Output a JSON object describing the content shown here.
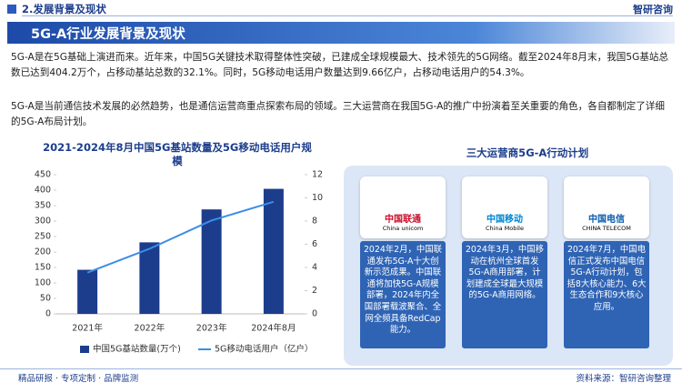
{
  "header": {
    "crumb": "2.发展背景及现状",
    "logo": "智研咨询"
  },
  "section": {
    "title": "5G-A行业发展背景及现状"
  },
  "paragraphs": [
    "5G-A是在5G基础上演进而来。近年来，中国5G关键技术取得整体性突破，已建成全球规模最大、技术领先的5G网络。截至2024年8月末，我国5G基站总数已达到404.2万个，占移动基站总数的32.1%。同时，5G移动电话用户数量达到9.66亿户，占移动电话用户的54.3%。",
    "5G-A是当前通信技术发展的必然趋势，也是通信运营商重点探索布局的领域。三大运营商在我国5G-A的推广中扮演着至关重要的角色，各自都制定了详细的5G-A布局计划。"
  ],
  "chart_data": {
    "type": "bar",
    "title": "2021-2024年8月中国5G基站数量及5G移动电话用户规模",
    "categories": [
      "2021年",
      "2022年",
      "2023年",
      "2024年8月"
    ],
    "series": [
      {
        "name": "中国5G基站数量(万个)",
        "color": "#1c3d8c",
        "values": [
          142.5,
          231.2,
          337.7,
          404.2
        ]
      },
      {
        "name": "5G移动电话用户（亿户）",
        "color": "#3a8ee6",
        "type": "line",
        "axis": "y2",
        "values": [
          3.55,
          5.61,
          8.05,
          9.66
        ]
      }
    ],
    "ylim": [
      0,
      450
    ],
    "yticks": [
      0,
      50,
      100,
      150,
      200,
      250,
      300,
      350,
      400,
      450
    ],
    "y2lim": [
      0,
      12
    ],
    "y2ticks": [
      0,
      2,
      4,
      6,
      8,
      10,
      12
    ],
    "grid": false
  },
  "plans": {
    "title": "三大运营商5G-A行动计划",
    "items": [
      {
        "logo_cn": "中国联通",
        "logo_en": "China unicom",
        "text": "2024年2月，中国联通发布5G-A十大创新示范成果。中国联通将加快5G-A规模部署，2024年内全国部署载波聚合、全网全频具备RedCap能力。"
      },
      {
        "logo_cn": "中国移动",
        "logo_en": "China Mobile",
        "text": "2024年3月，中国移动在杭州全球首发5G-A商用部署，计划建成全球最大规模的5G-A商用网络。"
      },
      {
        "logo_cn": "中国电信",
        "logo_en": "CHINA TELECOM",
        "text": "2024年7月，中国电信正式发布中国电信5G-A行动计划，包括8大核心能力、6大生态合作和9大核心应用。"
      }
    ]
  },
  "footer": {
    "left": "精品研报 · 专项定制 · 品牌监测",
    "right": "资料来源：智研咨询整理"
  }
}
